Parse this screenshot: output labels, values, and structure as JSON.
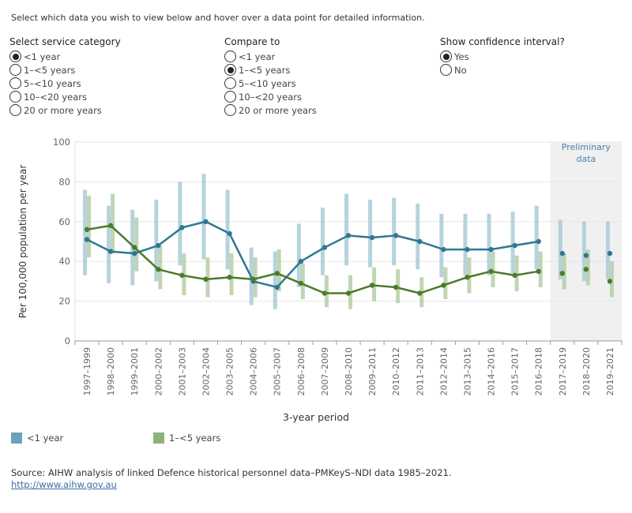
{
  "instruction": "Select which data you wish to view below and hover over a data point for detailed information.",
  "controls": {
    "service": {
      "title": "Select service category",
      "options": [
        "<1 year",
        "1–<5 years",
        "5–<10 years",
        "10–<20 years",
        "20 or more years"
      ],
      "selected": 0
    },
    "compare": {
      "title": "Compare to",
      "options": [
        "<1 year",
        "1–<5 years",
        "5–<10 years",
        "10–<20 years",
        "20 or more years"
      ],
      "selected": 1
    },
    "ci": {
      "title": "Show confidence interval?",
      "options": [
        "Yes",
        "No"
      ],
      "selected": 0
    }
  },
  "source": {
    "text": "Source: AIHW analysis of linked Defence historical personnel data–PMKeyS–NDI data 1985–2021.",
    "link": "http://www.aihw.gov.au"
  },
  "chart_data": {
    "type": "line",
    "xlabel": "3-year period",
    "ylabel": "Per 100,000 population per year",
    "ylim": [
      0,
      100
    ],
    "yticks": [
      0,
      20,
      40,
      60,
      80,
      100
    ],
    "preliminary_label": [
      "Preliminary",
      "data"
    ],
    "preliminary_categories": [
      "2017–2019",
      "2018–2020",
      "2019–2021"
    ],
    "categories": [
      "1997–1999",
      "1998–2000",
      "1999–2001",
      "2000–2002",
      "2001–2003",
      "2002–2004",
      "2003–2005",
      "2004–2006",
      "2005–2007",
      "2006–2008",
      "2007–2009",
      "2008–2010",
      "2009–2011",
      "2010–2012",
      "2011–2013",
      "2012–2014",
      "2013–2015",
      "2014–2016",
      "2015–2017",
      "2016–2018",
      "2017–2019",
      "2018–2020",
      "2019–2021"
    ],
    "series": [
      {
        "name": "<1 year",
        "color": "#2e7892",
        "ci_color": "#a9cbd7",
        "values": [
          51,
          45,
          44,
          48,
          57,
          60,
          54,
          30,
          27,
          40,
          47,
          53,
          52,
          53,
          50,
          46,
          46,
          46,
          48,
          50,
          44,
          43,
          44
        ],
        "lower": [
          33,
          29,
          28,
          30,
          38,
          41,
          36,
          18,
          16,
          27,
          33,
          38,
          37,
          38,
          36,
          32,
          33,
          33,
          34,
          36,
          31,
          30,
          31
        ],
        "upper": [
          76,
          68,
          66,
          71,
          80,
          84,
          76,
          47,
          45,
          59,
          67,
          74,
          71,
          72,
          69,
          64,
          64,
          64,
          65,
          68,
          61,
          60,
          60
        ]
      },
      {
        "name": "1–<5 years",
        "color": "#4b7b2c",
        "ci_color": "#b5cea7",
        "values": [
          56,
          58,
          47,
          36,
          33,
          31,
          32,
          31,
          34,
          29,
          24,
          24,
          28,
          27,
          24,
          28,
          32,
          35,
          33,
          35,
          34,
          36,
          30
        ],
        "lower": [
          42,
          44,
          35,
          26,
          23,
          22,
          23,
          22,
          25,
          21,
          17,
          16,
          20,
          19,
          17,
          21,
          24,
          27,
          25,
          27,
          26,
          28,
          22
        ],
        "upper": [
          73,
          74,
          62,
          48,
          44,
          42,
          44,
          42,
          46,
          39,
          33,
          33,
          37,
          36,
          32,
          37,
          42,
          45,
          43,
          45,
          44,
          46,
          40
        ]
      }
    ]
  }
}
